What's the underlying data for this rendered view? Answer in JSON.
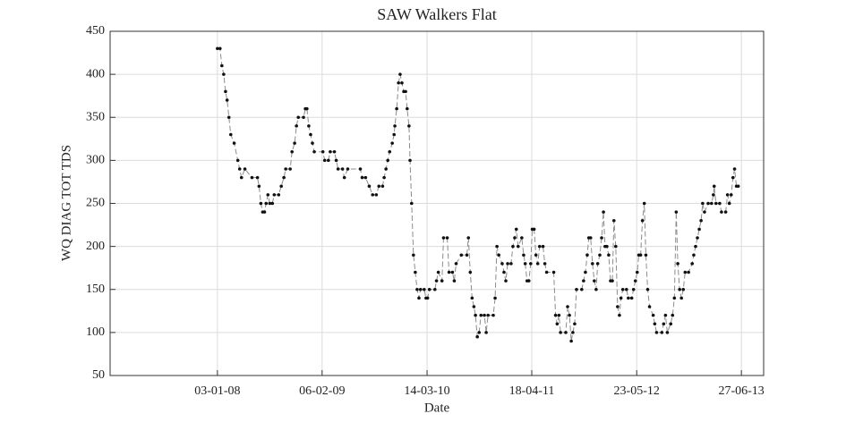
{
  "chart_data": {
    "type": "line",
    "title": "SAW Walkers Flat",
    "xlabel": "Date",
    "ylabel": "WQ DIAG TOT TDS",
    "x": [
      "03-01-08",
      "13-01-08",
      "20-01-08",
      "27-01-08",
      "03-02-08",
      "09-02-08",
      "16-02-08",
      "23-02-08",
      "07-03-08",
      "21-03-08",
      "28-03-08",
      "04-04-08",
      "17-04-08",
      "14-05-08",
      "04-06-08",
      "10-06-08",
      "17-06-08",
      "24-06-08",
      "01-07-08",
      "07-07-08",
      "14-07-08",
      "21-07-08",
      "31-07-08",
      "07-08-08",
      "24-08-08",
      "03-09-08",
      "13-09-08",
      "20-09-08",
      "07-10-08",
      "14-10-08",
      "24-10-08",
      "31-10-08",
      "07-11-08",
      "27-11-08",
      "04-12-08",
      "10-12-08",
      "17-12-08",
      "24-12-08",
      "31-12-08",
      "07-01-09",
      "09-02-09",
      "16-02-09",
      "02-03-09",
      "09-03-09",
      "25-03-09",
      "01-04-09",
      "08-04-09",
      "25-04-09",
      "02-05-09",
      "15-05-09",
      "02-07-09",
      "09-07-09",
      "22-07-09",
      "05-08-09",
      "18-08-09",
      "01-09-09",
      "11-09-09",
      "25-09-09",
      "01-10-09",
      "08-10-09",
      "15-10-09",
      "22-10-09",
      "01-11-09",
      "08-11-09",
      "11-11-09",
      "18-11-09",
      "25-11-09",
      "01-12-09",
      "08-12-09",
      "15-12-09",
      "22-12-09",
      "28-12-09",
      "04-01-10",
      "08-01-10",
      "14-01-10",
      "21-01-10",
      "28-01-10",
      "04-02-10",
      "11-02-10",
      "17-02-10",
      "03-03-10",
      "10-03-10",
      "16-03-10",
      "23-03-10",
      "13-04-10",
      "19-04-10",
      "26-04-10",
      "10-05-10",
      "16-05-10",
      "30-05-10",
      "06-06-10",
      "19-06-10",
      "26-06-10",
      "03-07-10",
      "23-07-10",
      "13-08-10",
      "19-08-10",
      "26-08-10",
      "02-09-10",
      "09-09-10",
      "15-09-10",
      "22-09-10",
      "29-09-10",
      "06-10-10",
      "19-10-10",
      "26-10-10",
      "02-11-10",
      "22-11-10",
      "29-11-10",
      "06-12-10",
      "13-12-10",
      "26-12-10",
      "02-01-11",
      "09-01-11",
      "16-01-11",
      "29-01-11",
      "05-02-11",
      "12-02-11",
      "18-02-11",
      "25-02-11",
      "11-03-11",
      "18-03-11",
      "24-03-11",
      "31-03-11",
      "07-04-11",
      "14-04-11",
      "20-04-11",
      "27-04-11",
      "04-05-11",
      "11-05-11",
      "18-05-11",
      "31-05-11",
      "07-06-11",
      "14-06-11",
      "11-07-11",
      "18-07-11",
      "24-07-11",
      "31-07-11",
      "06-08-11",
      "26-08-11",
      "02-09-11",
      "09-09-11",
      "16-09-11",
      "22-09-11",
      "29-09-11",
      "06-10-11",
      "26-10-11",
      "02-11-11",
      "09-11-11",
      "16-11-11",
      "22-11-11",
      "29-11-11",
      "06-12-11",
      "13-12-11",
      "20-12-11",
      "26-12-11",
      "03-01-12",
      "10-01-12",
      "17-01-12",
      "23-01-12",
      "30-01-12",
      "06-02-12",
      "13-02-12",
      "20-02-12",
      "26-02-12",
      "04-03-12",
      "11-03-12",
      "18-03-12",
      "24-03-12",
      "31-03-12",
      "14-04-12",
      "21-04-12",
      "04-05-12",
      "11-05-12",
      "18-05-12",
      "25-05-12",
      "31-05-12",
      "07-06-12",
      "14-06-12",
      "21-06-12",
      "27-06-12",
      "04-07-12",
      "11-07-12",
      "25-07-12",
      "31-07-12",
      "07-08-12",
      "27-08-12",
      "03-09-12",
      "10-09-12",
      "17-09-12",
      "30-09-12",
      "07-10-12",
      "14-10-12",
      "21-10-12",
      "27-10-12",
      "03-11-12",
      "10-11-12",
      "17-11-12",
      "24-11-12",
      "07-12-12",
      "21-12-12",
      "27-12-12",
      "03-01-13",
      "10-01-13",
      "17-01-13",
      "24-01-13",
      "30-01-13",
      "06-02-13",
      "20-02-13",
      "05-03-13",
      "12-03-13",
      "15-03-13",
      "22-03-13",
      "05-04-13",
      "12-04-13",
      "28-04-13",
      "05-05-13",
      "12-05-13",
      "19-05-13",
      "26-05-13",
      "01-06-13",
      "08-06-13",
      "15-06-13"
    ],
    "values": [
      430,
      430,
      410,
      400,
      380,
      370,
      350,
      330,
      320,
      300,
      290,
      280,
      290,
      280,
      280,
      270,
      250,
      240,
      240,
      250,
      260,
      250,
      250,
      260,
      260,
      270,
      280,
      290,
      290,
      310,
      320,
      340,
      350,
      350,
      360,
      360,
      340,
      330,
      320,
      310,
      310,
      300,
      300,
      310,
      310,
      300,
      290,
      290,
      280,
      290,
      290,
      280,
      280,
      270,
      260,
      260,
      270,
      270,
      280,
      290,
      300,
      310,
      320,
      330,
      340,
      360,
      390,
      400,
      390,
      380,
      380,
      360,
      340,
      300,
      250,
      190,
      170,
      150,
      140,
      150,
      150,
      140,
      140,
      150,
      150,
      160,
      170,
      160,
      210,
      210,
      170,
      170,
      160,
      180,
      190,
      190,
      210,
      170,
      140,
      130,
      120,
      95,
      100,
      120,
      120,
      100,
      120,
      120,
      140,
      200,
      190,
      180,
      170,
      160,
      180,
      180,
      200,
      210,
      220,
      200,
      210,
      190,
      180,
      160,
      160,
      180,
      220,
      220,
      190,
      180,
      200,
      200,
      180,
      170,
      170,
      120,
      110,
      120,
      100,
      100,
      130,
      120,
      90,
      100,
      110,
      150,
      150,
      160,
      170,
      190,
      210,
      210,
      180,
      160,
      150,
      180,
      190,
      210,
      240,
      200,
      200,
      190,
      160,
      160,
      230,
      200,
      130,
      120,
      140,
      150,
      150,
      140,
      140,
      150,
      160,
      170,
      190,
      190,
      230,
      250,
      190,
      150,
      130,
      120,
      110,
      100,
      100,
      110,
      120,
      100,
      110,
      120,
      140,
      240,
      180,
      150,
      140,
      150,
      170,
      170,
      180,
      190,
      200,
      210,
      220,
      230,
      250,
      240,
      250,
      250,
      260,
      270,
      250,
      250,
      240,
      240,
      260,
      250,
      260,
      280,
      290,
      270,
      270
    ],
    "line_color": "#8c8c8c",
    "marker_color": "#111111",
    "xlim": [
      "19-11-06",
      "20-09-13"
    ],
    "xticks": [
      "03-01-08",
      "06-02-09",
      "14-03-10",
      "18-04-11",
      "23-05-12",
      "27-06-13"
    ],
    "ylim": [
      50,
      450
    ],
    "yticks": [
      50,
      100,
      150,
      200,
      250,
      300,
      350,
      400,
      450
    ],
    "grid": true
  }
}
